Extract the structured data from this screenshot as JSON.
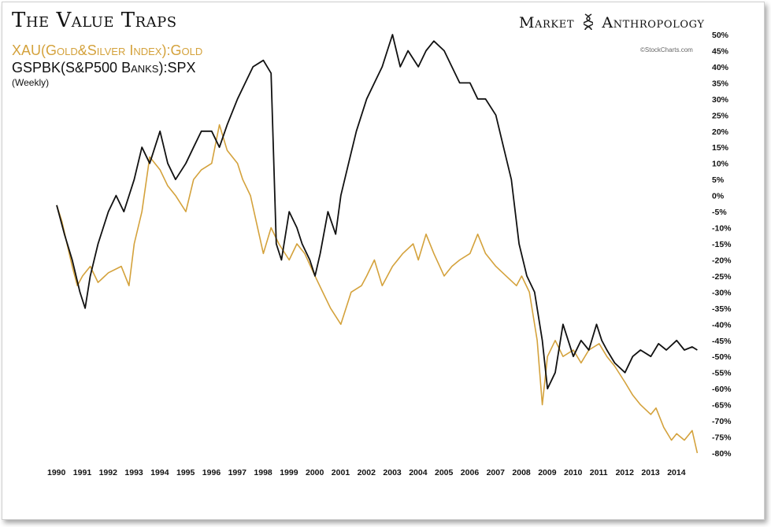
{
  "header": {
    "title": "The Value Traps",
    "brand_left": "Market",
    "brand_right": "Anthropology",
    "brand_icon": "dna-helix-icon",
    "credit": "©StockCharts.com"
  },
  "legend": {
    "series_gold": "XAU(Gold&Silver Index):Gold",
    "series_black": "GSPBK(S&P500 Banks):SPX",
    "frequency": "(Weekly)"
  },
  "colors": {
    "gold": "#D4A23C",
    "black": "#111111"
  },
  "chart_data": {
    "type": "line",
    "title": "The Value Traps",
    "xlim": [
      1990.0,
      2015.0
    ],
    "ylim": [
      -80,
      50
    ],
    "y_axis_position": "right",
    "grid": false,
    "legend_position": "top-left",
    "x_tick_labels": [
      "1990",
      "1991",
      "1992",
      "1993",
      "1994",
      "1995",
      "1996",
      "1997",
      "1998",
      "1999",
      "2000",
      "2001",
      "2002",
      "2003",
      "2004",
      "2005",
      "2006",
      "2007",
      "2008",
      "2009",
      "2010",
      "2011",
      "2012",
      "2013",
      "2014"
    ],
    "y_ticks": [
      50,
      45,
      40,
      35,
      30,
      25,
      20,
      15,
      10,
      5,
      0,
      -5,
      -10,
      -15,
      -20,
      -25,
      -30,
      -35,
      -40,
      -45,
      -50,
      -55,
      -60,
      -65,
      -70,
      -75,
      -80
    ],
    "y_tick_labels": [
      "50%",
      "45%",
      "40%",
      "35%",
      "30%",
      "25%",
      "20%",
      "15%",
      "10%",
      "5%",
      "0%",
      "-5%",
      "-10%",
      "-15%",
      "-20%",
      "-25%",
      "-30%",
      "-35%",
      "-40%",
      "-45%",
      "-50%",
      "-55%",
      "-60%",
      "-65%",
      "-70%",
      "-75%",
      "-80%"
    ],
    "series": [
      {
        "name": "XAU(Gold&Silver Index):Gold",
        "color": "#D4A23C",
        "x": [
          1990.0,
          1990.2,
          1990.4,
          1990.6,
          1990.8,
          1991.0,
          1991.3,
          1991.6,
          1992.0,
          1992.5,
          1992.8,
          1993.0,
          1993.3,
          1993.6,
          1994.0,
          1994.3,
          1994.6,
          1995.0,
          1995.3,
          1995.6,
          1996.0,
          1996.3,
          1996.6,
          1997.0,
          1997.2,
          1997.5,
          1998.0,
          1998.3,
          1998.6,
          1999.0,
          1999.3,
          1999.6,
          2000.0,
          2000.3,
          2000.6,
          2001.0,
          2001.4,
          2001.8,
          2002.0,
          2002.3,
          2002.6,
          2003.0,
          2003.4,
          2003.8,
          2004.0,
          2004.3,
          2004.6,
          2005.0,
          2005.3,
          2005.6,
          2006.0,
          2006.3,
          2006.6,
          2007.0,
          2007.4,
          2007.8,
          2008.0,
          2008.3,
          2008.6,
          2008.8,
          2009.0,
          2009.3,
          2009.6,
          2010.0,
          2010.3,
          2010.6,
          2011.0,
          2011.3,
          2011.6,
          2012.0,
          2012.3,
          2012.6,
          2013.0,
          2013.2,
          2013.5,
          2013.8,
          2014.0,
          2014.3,
          2014.6,
          2014.8
        ],
        "y": [
          -3,
          -8,
          -15,
          -22,
          -28,
          -25,
          -22,
          -27,
          -24,
          -22,
          -28,
          -15,
          -5,
          12,
          8,
          3,
          0,
          -5,
          5,
          8,
          10,
          22,
          14,
          10,
          5,
          0,
          -18,
          -10,
          -15,
          -20,
          -15,
          -18,
          -25,
          -30,
          -35,
          -40,
          -30,
          -28,
          -25,
          -20,
          -28,
          -22,
          -18,
          -15,
          -20,
          -12,
          -18,
          -25,
          -22,
          -20,
          -18,
          -12,
          -18,
          -22,
          -25,
          -28,
          -25,
          -30,
          -45,
          -65,
          -50,
          -45,
          -50,
          -48,
          -52,
          -48,
          -46,
          -50,
          -53,
          -58,
          -62,
          -65,
          -68,
          -66,
          -72,
          -76,
          -74,
          -76,
          -73,
          -80
        ]
      },
      {
        "name": "GSPBK(S&P500 Banks):SPX",
        "color": "#111111",
        "x": [
          1990.0,
          1990.3,
          1990.6,
          1990.9,
          1991.1,
          1991.3,
          1991.6,
          1992.0,
          1992.3,
          1992.6,
          1993.0,
          1993.3,
          1993.6,
          1994.0,
          1994.3,
          1994.6,
          1995.0,
          1995.3,
          1995.6,
          1996.0,
          1996.3,
          1996.6,
          1997.0,
          1997.3,
          1997.6,
          1998.0,
          1998.3,
          1998.5,
          1998.7,
          1999.0,
          1999.3,
          1999.5,
          1999.8,
          2000.0,
          2000.2,
          2000.5,
          2000.8,
          2001.0,
          2001.3,
          2001.6,
          2002.0,
          2002.3,
          2002.6,
          2002.8,
          2003.0,
          2003.3,
          2003.6,
          2004.0,
          2004.3,
          2004.6,
          2005.0,
          2005.3,
          2005.6,
          2006.0,
          2006.3,
          2006.6,
          2007.0,
          2007.3,
          2007.6,
          2007.9,
          2008.2,
          2008.5,
          2008.8,
          2009.0,
          2009.3,
          2009.6,
          2010.0,
          2010.3,
          2010.6,
          2010.9,
          2011.1,
          2011.3,
          2011.6,
          2012.0,
          2012.3,
          2012.6,
          2013.0,
          2013.3,
          2013.6,
          2014.0,
          2014.3,
          2014.6,
          2014.8
        ],
        "y": [
          -3,
          -12,
          -20,
          -30,
          -35,
          -25,
          -15,
          -5,
          0,
          -5,
          5,
          15,
          10,
          20,
          10,
          5,
          10,
          15,
          20,
          20,
          15,
          22,
          30,
          35,
          40,
          42,
          38,
          -15,
          -20,
          -5,
          -10,
          -15,
          -20,
          -25,
          -18,
          -5,
          -12,
          0,
          10,
          20,
          30,
          35,
          40,
          45,
          50,
          40,
          45,
          40,
          45,
          48,
          45,
          40,
          35,
          35,
          30,
          30,
          25,
          15,
          5,
          -15,
          -25,
          -30,
          -45,
          -60,
          -55,
          -40,
          -50,
          -45,
          -48,
          -40,
          -45,
          -48,
          -52,
          -55,
          -50,
          -48,
          -50,
          -46,
          -48,
          -45,
          -48,
          -47,
          -48
        ]
      }
    ]
  }
}
